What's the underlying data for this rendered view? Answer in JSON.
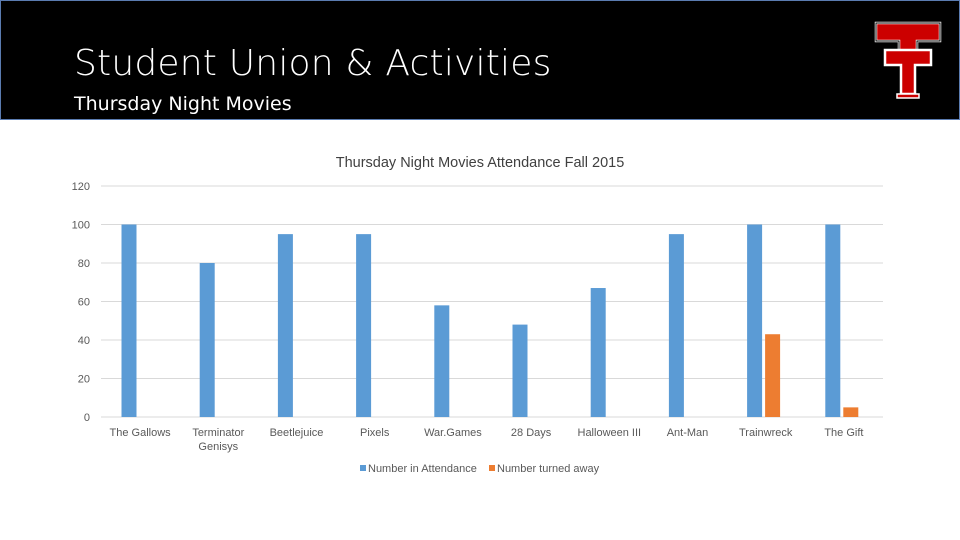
{
  "header": {
    "title": "Student Union & Activities",
    "subtitle": "Thursday Night Movies",
    "logo_icon": "double-t-logo"
  },
  "colors": {
    "header_bg": "#000000",
    "logo_red": "#cc0000",
    "series_attendance": "#5b9bd5",
    "series_turned_away": "#ed7d31",
    "grid": "#d9d9d9",
    "text": "#595959"
  },
  "chart_data": {
    "type": "bar",
    "title": "Thursday Night Movies Attendance Fall 2015",
    "xlabel": "",
    "ylabel": "",
    "ylim": [
      0,
      120
    ],
    "yticks": [
      0,
      20,
      40,
      60,
      80,
      100,
      120
    ],
    "grid": true,
    "legend_position": "bottom",
    "categories": [
      "The Gallows",
      "Terminator Genisys",
      "Beetlejuice",
      "Pixels",
      "War.Games",
      "28 Days",
      "Halloween III",
      "Ant-Man",
      "Trainwreck",
      "The Gift"
    ],
    "series": [
      {
        "name": "Number in Attendance",
        "color": "#5b9bd5",
        "values": [
          100,
          80,
          95,
          95,
          58,
          48,
          67,
          95,
          100,
          100
        ]
      },
      {
        "name": "Number turned away",
        "color": "#ed7d31",
        "values": [
          0,
          0,
          0,
          0,
          0,
          0,
          0,
          0,
          43,
          5
        ]
      }
    ]
  }
}
